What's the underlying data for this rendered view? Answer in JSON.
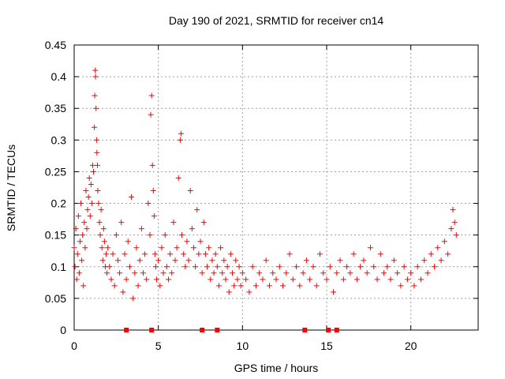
{
  "chart_data": {
    "type": "scatter",
    "title": "Day 190 of 2021, SRMTID for receiver cn14",
    "xlabel": "GPS time / hours",
    "ylabel": "SRMTID / TECUs",
    "xlim": [
      0,
      24
    ],
    "ylim": [
      0,
      0.45
    ],
    "xticks": [
      0,
      5,
      10,
      15,
      20
    ],
    "xtick_labels": [
      "0",
      "5",
      "10",
      "15",
      "20"
    ],
    "yticks": [
      0,
      0.05,
      0.1,
      0.15,
      0.2,
      0.25,
      0.3,
      0.35,
      0.4,
      0.45
    ],
    "ytick_labels": [
      "0",
      "0.05",
      "0.1",
      "0.15",
      "0.2",
      "0.25",
      "0.3",
      "0.35",
      "0.4",
      "0.45"
    ],
    "grid": true,
    "marker": "plus",
    "color": "#ff0000",
    "series": [
      {
        "name": "SRMTID",
        "x": [
          0.0,
          0.05,
          0.1,
          0.15,
          0.2,
          0.25,
          0.3,
          0.35,
          0.4,
          0.45,
          0.5,
          0.55,
          0.6,
          0.65,
          0.7,
          0.75,
          0.8,
          0.85,
          0.9,
          0.95,
          1.0,
          1.05,
          1.1,
          1.15,
          1.2,
          1.22,
          1.25,
          1.27,
          1.3,
          1.33,
          1.35,
          1.38,
          1.4,
          1.45,
          1.5,
          1.55,
          1.6,
          1.65,
          1.7,
          1.75,
          1.8,
          1.85,
          1.9,
          1.95,
          2.0,
          2.1,
          2.2,
          2.3,
          2.4,
          2.5,
          2.6,
          2.7,
          2.8,
          2.9,
          3.0,
          3.1,
          3.2,
          3.3,
          3.4,
          3.5,
          3.6,
          3.7,
          3.8,
          3.9,
          4.0,
          4.1,
          4.2,
          4.3,
          4.4,
          4.5,
          4.55,
          4.6,
          4.65,
          4.7,
          4.75,
          4.8,
          4.85,
          4.9,
          5.0,
          5.1,
          5.2,
          5.3,
          5.4,
          5.5,
          5.6,
          5.7,
          5.8,
          5.9,
          6.0,
          6.1,
          6.2,
          6.3,
          6.35,
          6.4,
          6.5,
          6.6,
          6.7,
          6.8,
          6.9,
          7.0,
          7.1,
          7.2,
          7.3,
          7.4,
          7.5,
          7.6,
          7.7,
          7.8,
          7.9,
          8.0,
          8.1,
          8.2,
          8.3,
          8.4,
          8.5,
          8.6,
          8.7,
          8.8,
          8.9,
          9.0,
          9.1,
          9.2,
          9.3,
          9.4,
          9.5,
          9.6,
          9.7,
          9.8,
          9.9,
          10.0,
          10.2,
          10.4,
          10.6,
          10.8,
          11.0,
          11.2,
          11.4,
          11.6,
          11.8,
          12.0,
          12.2,
          12.4,
          12.6,
          12.8,
          13.0,
          13.2,
          13.4,
          13.6,
          13.8,
          14.0,
          14.2,
          14.4,
          14.6,
          14.8,
          15.0,
          15.2,
          15.4,
          15.6,
          15.8,
          16.0,
          16.2,
          16.4,
          16.6,
          16.8,
          17.0,
          17.2,
          17.4,
          17.6,
          17.8,
          18.0,
          18.2,
          18.4,
          18.6,
          18.8,
          19.0,
          19.2,
          19.4,
          19.6,
          19.8,
          20.0,
          20.2,
          20.4,
          20.6,
          20.8,
          21.0,
          21.2,
          21.4,
          21.6,
          21.8,
          22.0,
          22.2,
          22.4,
          22.5,
          22.6,
          22.7
        ],
        "y": [
          0.13,
          0.1,
          0.16,
          0.08,
          0.12,
          0.18,
          0.09,
          0.14,
          0.2,
          0.11,
          0.15,
          0.07,
          0.17,
          0.13,
          0.22,
          0.16,
          0.19,
          0.21,
          0.24,
          0.18,
          0.23,
          0.2,
          0.26,
          0.25,
          0.32,
          0.37,
          0.41,
          0.4,
          0.35,
          0.3,
          0.28,
          0.26,
          0.22,
          0.2,
          0.17,
          0.15,
          0.19,
          0.13,
          0.11,
          0.16,
          0.14,
          0.1,
          0.12,
          0.09,
          0.13,
          0.1,
          0.08,
          0.12,
          0.07,
          0.15,
          0.11,
          0.09,
          0.17,
          0.06,
          0.12,
          0.08,
          0.14,
          0.1,
          0.21,
          0.05,
          0.09,
          0.13,
          0.07,
          0.11,
          0.16,
          0.09,
          0.12,
          0.08,
          0.2,
          0.15,
          0.34,
          0.37,
          0.26,
          0.22,
          0.18,
          0.12,
          0.1,
          0.08,
          0.11,
          0.07,
          0.13,
          0.09,
          0.15,
          0.1,
          0.08,
          0.12,
          0.09,
          0.17,
          0.11,
          0.13,
          0.24,
          0.3,
          0.31,
          0.15,
          0.12,
          0.1,
          0.14,
          0.11,
          0.22,
          0.16,
          0.13,
          0.1,
          0.19,
          0.12,
          0.14,
          0.09,
          0.17,
          0.12,
          0.1,
          0.13,
          0.08,
          0.11,
          0.09,
          0.12,
          0.1,
          0.07,
          0.13,
          0.09,
          0.11,
          0.08,
          0.1,
          0.06,
          0.12,
          0.09,
          0.07,
          0.11,
          0.08,
          0.1,
          0.07,
          0.09,
          0.08,
          0.06,
          0.1,
          0.07,
          0.09,
          0.08,
          0.11,
          0.07,
          0.09,
          0.08,
          0.1,
          0.07,
          0.09,
          0.12,
          0.08,
          0.1,
          0.07,
          0.09,
          0.11,
          0.08,
          0.1,
          0.07,
          0.12,
          0.09,
          0.08,
          0.1,
          0.06,
          0.09,
          0.11,
          0.08,
          0.1,
          0.09,
          0.12,
          0.08,
          0.1,
          0.11,
          0.09,
          0.13,
          0.1,
          0.08,
          0.12,
          0.09,
          0.1,
          0.08,
          0.11,
          0.09,
          0.07,
          0.1,
          0.08,
          0.09,
          0.07,
          0.1,
          0.08,
          0.11,
          0.09,
          0.12,
          0.1,
          0.13,
          0.11,
          0.14,
          0.12,
          0.16,
          0.19,
          0.17,
          0.15
        ]
      }
    ],
    "baseline_markers": {
      "y": 0,
      "x": [
        3.1,
        4.6,
        7.6,
        8.5,
        13.7,
        15.1,
        15.6
      ]
    }
  }
}
